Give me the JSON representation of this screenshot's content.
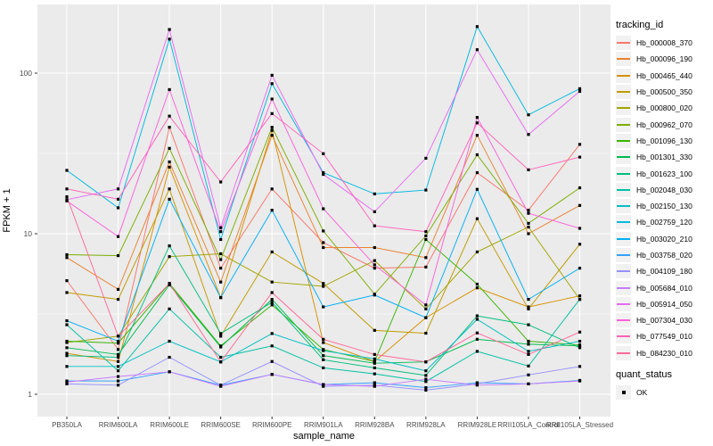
{
  "figure": {
    "background": "#FFFFFF",
    "panel_background": "#EBEBEB",
    "gridline_color": "#FFFFFF",
    "tick_text_color": "#4D4D4D",
    "point_color": "#000000"
  },
  "chart_data": {
    "type": "line",
    "title": "",
    "xlabel": "sample_name",
    "ylabel": "FPKM + 1",
    "y_scale": "log10",
    "y_tick_labels": [
      "1",
      "10",
      "100"
    ],
    "y_tick_values": [
      1,
      10,
      100
    ],
    "ylim": [
      0.73,
      270
    ],
    "grid": "on",
    "legend_position": "right",
    "point_shape": "filled-square",
    "categories": [
      "PB350LA",
      "RRIM600LA",
      "RRIM600LE",
      "RRIM600SE",
      "RRIM600PE",
      "RRIM901LA",
      "RRIM928BA",
      "RRIM928LA",
      "RRIM928LE",
      "RRII105LA_Control",
      "RRII105LA_Stressed"
    ],
    "series": [
      {
        "name": "Hb_000008_370",
        "color": "#F8766D",
        "values": [
          5.1,
          1.9,
          46,
          6.1,
          19,
          8.8,
          6.1,
          6.2,
          24,
          14,
          36
        ]
      },
      {
        "name": "Hb_000096_190",
        "color": "#EA8331",
        "values": [
          7.1,
          4.5,
          28,
          5.0,
          41,
          8.2,
          8.2,
          7.1,
          41,
          10,
          15
        ]
      },
      {
        "name": "Hb_000465_440",
        "color": "#D89000",
        "values": [
          1.8,
          1.6,
          26,
          4.0,
          44,
          2.1,
          1.6,
          3.0,
          4.6,
          3.5,
          4.1
        ]
      },
      {
        "name": "Hb_000500_350",
        "color": "#C09B00",
        "values": [
          4.3,
          3.9,
          19,
          2.3,
          7.7,
          4.9,
          2.5,
          2.4,
          12.4,
          3.4,
          8.6
        ]
      },
      {
        "name": "Hb_000800_020",
        "color": "#A3A500",
        "values": [
          2.1,
          2.3,
          7.2,
          7.5,
          5.0,
          4.7,
          6.8,
          3.4,
          7.7,
          11.0,
          3.9
        ]
      },
      {
        "name": "Hb_000962_070",
        "color": "#7CAE00",
        "values": [
          7.4,
          7.3,
          34,
          6.9,
          46,
          10.4,
          4.2,
          9.7,
          31,
          11.6,
          19.3
        ]
      },
      {
        "name": "Hb_001096_130",
        "color": "#39B600",
        "values": [
          2.14,
          2.08,
          4.9,
          2.0,
          3.6,
          1.9,
          1.6,
          9.2,
          4.85,
          2.14,
          2.03
        ]
      },
      {
        "name": "Hb_001301_330",
        "color": "#00BB4E",
        "values": [
          1.95,
          1.77,
          4.8,
          1.97,
          3.9,
          1.74,
          1.56,
          1.59,
          2.2,
          2.05,
          2.0
        ]
      },
      {
        "name": "Hb_001623_100",
        "color": "#00BF7D",
        "values": [
          1.74,
          1.7,
          8.4,
          2.39,
          3.74,
          1.64,
          1.46,
          1.31,
          3.08,
          2.71,
          1.95
        ]
      },
      {
        "name": "Hb_002048_030",
        "color": "#00C1A3",
        "values": [
          2.71,
          1.4,
          3.4,
          1.7,
          2.0,
          1.46,
          1.34,
          1.2,
          1.85,
          1.5,
          3.9
        ]
      },
      {
        "name": "Hb_002150_130",
        "color": "#00BFC4",
        "values": [
          1.49,
          1.49,
          2.14,
          1.59,
          2.39,
          1.87,
          1.66,
          1.4,
          2.93,
          1.85,
          2.14
        ]
      },
      {
        "name": "Hb_002759_120",
        "color": "#00BAE0",
        "values": [
          24.8,
          14.5,
          163,
          9.2,
          86,
          24,
          17.7,
          18.7,
          195,
          55,
          80
        ]
      },
      {
        "name": "Hb_003020_210",
        "color": "#00B0F6",
        "values": [
          2.87,
          2.14,
          16.4,
          4.0,
          14.0,
          3.5,
          4.15,
          3.0,
          18.9,
          3.9,
          6.1
        ]
      },
      {
        "name": "Hb_003758_020",
        "color": "#35A2FF",
        "values": [
          1.21,
          1.21,
          1.38,
          1.14,
          1.33,
          1.15,
          1.18,
          1.1,
          1.18,
          1.16,
          1.22
        ]
      },
      {
        "name": "Hb_004109_180",
        "color": "#9590FF",
        "values": [
          1.16,
          1.14,
          1.7,
          1.14,
          1.6,
          1.12,
          1.14,
          1.06,
          1.16,
          1.32,
          1.49
        ]
      },
      {
        "name": "Hb_005684_010",
        "color": "#C77CFF",
        "values": [
          1.19,
          1.29,
          1.38,
          1.12,
          1.33,
          1.15,
          1.12,
          1.24,
          1.14,
          1.16,
          1.21
        ]
      },
      {
        "name": "Hb_005914_050",
        "color": "#E76BF3",
        "values": [
          16.3,
          19.0,
          187,
          10.9,
          97,
          23.4,
          13.7,
          29.5,
          140,
          41.5,
          77
        ]
      },
      {
        "name": "Hb_007304_030",
        "color": "#FA62DB",
        "values": [
          16.0,
          9.6,
          79,
          10.3,
          69,
          14.3,
          6.4,
          3.6,
          53,
          13.4,
          10.8
        ]
      },
      {
        "name": "Hb_077549_010",
        "color": "#FF62BC",
        "values": [
          19.0,
          16.4,
          54,
          21,
          56,
          31.5,
          11.2,
          10.3,
          49,
          25,
          30
        ]
      },
      {
        "name": "Hb_084230_010",
        "color": "#FF6A98",
        "values": [
          17.0,
          2.3,
          4.9,
          1.59,
          4.3,
          2.2,
          1.77,
          1.59,
          2.41,
          1.77,
          2.44
        ]
      }
    ],
    "legend": {
      "tracking_title": "tracking_id",
      "quant_title": "quant_status",
      "quant_status_label": "OK"
    }
  }
}
